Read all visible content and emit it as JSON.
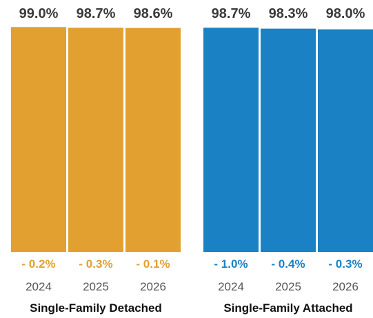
{
  "chart_data": {
    "type": "bar",
    "groups": [
      {
        "name": "Single-Family Detached",
        "color": "#E2A030",
        "categories": [
          "2024",
          "2025",
          "2026"
        ],
        "values": [
          99.0,
          98.7,
          98.6
        ],
        "value_labels": [
          "99.0%",
          "98.7%",
          "98.6%"
        ],
        "changes": [
          "- 0.2%",
          "- 0.3%",
          "- 0.1%"
        ]
      },
      {
        "name": "Single-Family Attached",
        "color": "#1A82C4",
        "categories": [
          "2024",
          "2025",
          "2026"
        ],
        "values": [
          98.7,
          98.3,
          98.0
        ],
        "value_labels": [
          "98.7%",
          "98.3%",
          "98.0%"
        ],
        "changes": [
          "- 1.0%",
          "- 0.4%",
          "- 0.3%"
        ]
      }
    ],
    "ylim": [
      0,
      100
    ],
    "grid": false,
    "legend": "none"
  }
}
